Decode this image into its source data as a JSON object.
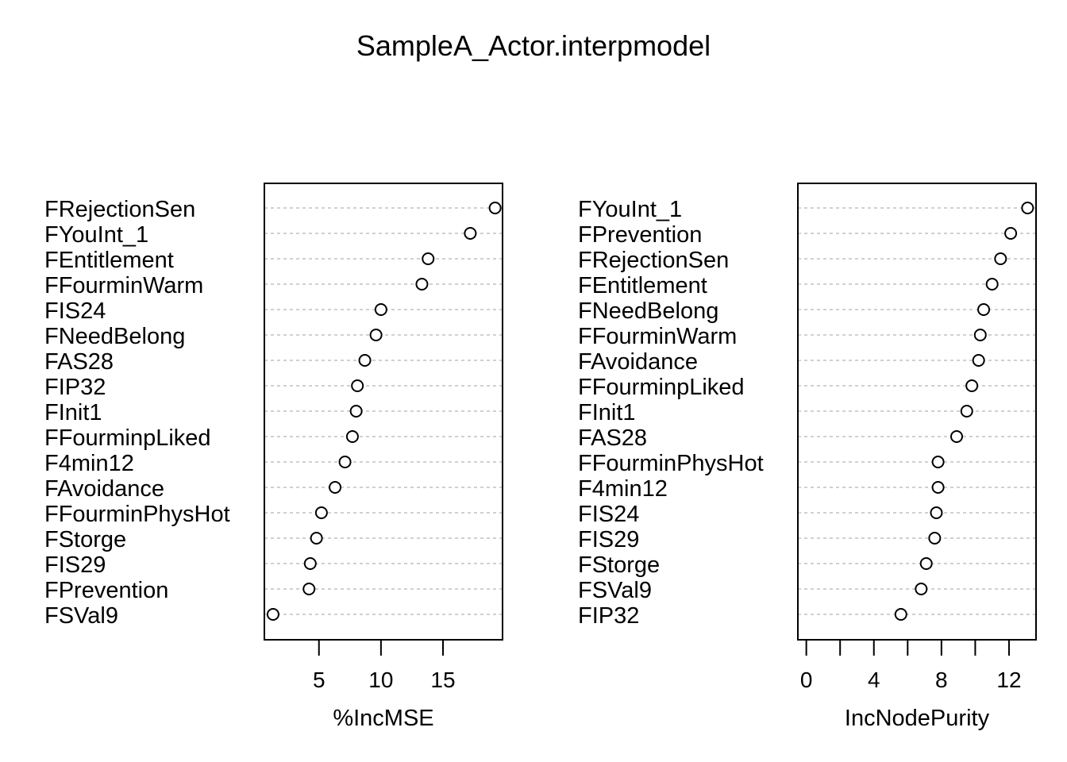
{
  "title": "SampleA_Actor.interpmodel",
  "chart_data": [
    {
      "type": "dotchart",
      "xlabel": "%IncMSE",
      "xlim": [
        0.6,
        19.8
      ],
      "xticks": [
        5,
        10,
        15
      ],
      "labels": [
        "FRejectionSen",
        "FYouInt_1",
        "FEntitlement",
        "FFourminWarm",
        "FIS24",
        "FNeedBelong",
        "FAS28",
        "FIP32",
        "FInit1",
        "FFourminpLiked",
        "F4min12",
        "FAvoidance",
        "FFourminPhysHot",
        "FStorge",
        "FIS29",
        "FPrevention",
        "FSVal9"
      ],
      "values": [
        19.2,
        17.2,
        13.8,
        13.3,
        10.0,
        9.6,
        8.7,
        8.1,
        8.0,
        7.7,
        7.1,
        6.3,
        5.2,
        4.8,
        4.3,
        4.2,
        1.3
      ],
      "grid": true
    },
    {
      "type": "dotchart",
      "xlabel": "IncNodePurity",
      "xlim": [
        -0.5,
        13.6
      ],
      "xticks": [
        0,
        4,
        8,
        12
      ],
      "minor_ticks": [
        0,
        2,
        4,
        6,
        8,
        10,
        12
      ],
      "labels": [
        "FYouInt_1",
        "FPrevention",
        "FRejectionSen",
        "FEntitlement",
        "FNeedBelong",
        "FFourminWarm",
        "FAvoidance",
        "FFourminpLiked",
        "FInit1",
        "FAS28",
        "FFourminPhysHot",
        "F4min12",
        "FIS24",
        "FIS29",
        "FStorge",
        "FSVal9",
        "FIP32"
      ],
      "values": [
        13.1,
        12.1,
        11.5,
        11.0,
        10.5,
        10.3,
        10.2,
        9.8,
        9.5,
        8.9,
        7.8,
        7.8,
        7.7,
        7.6,
        7.1,
        6.8,
        5.6
      ],
      "grid": true
    }
  ]
}
